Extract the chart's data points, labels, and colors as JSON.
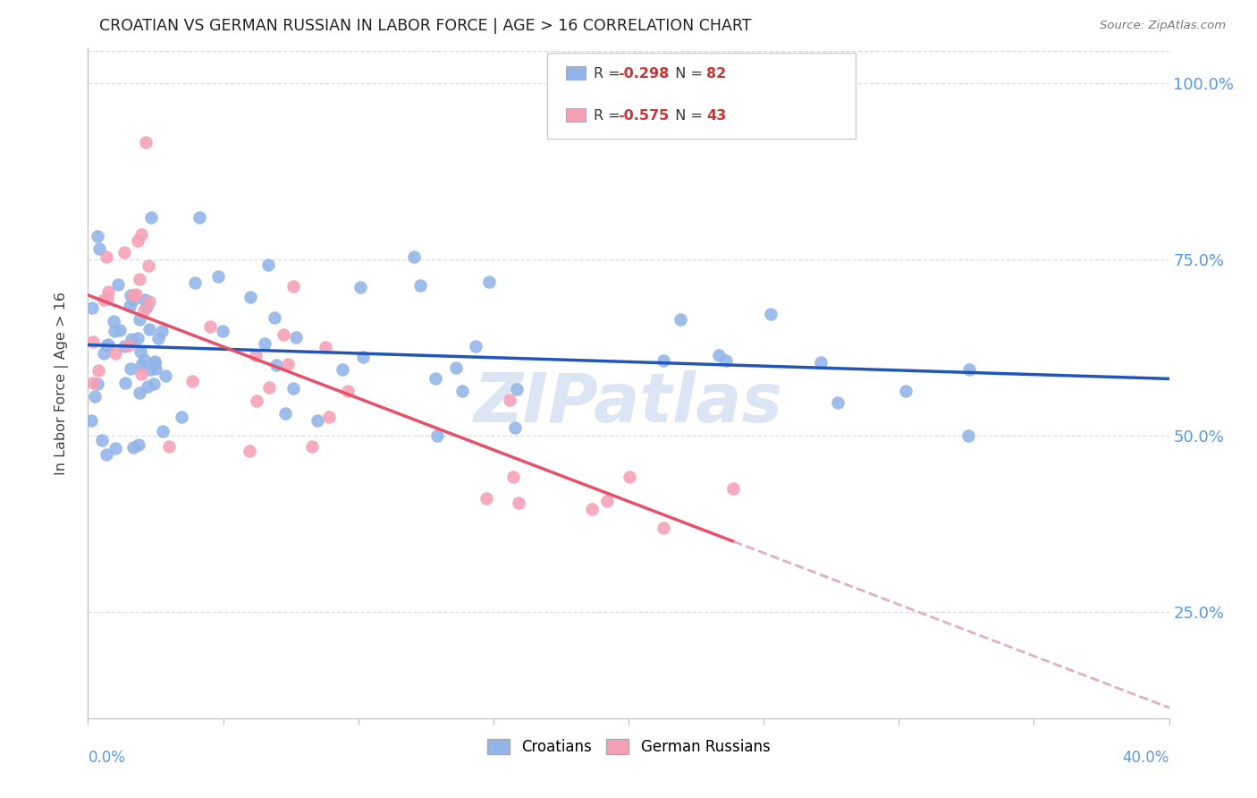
{
  "title": "CROATIAN VS GERMAN RUSSIAN IN LABOR FORCE | AGE > 16 CORRELATION CHART",
  "source": "Source: ZipAtlas.com",
  "ylabel": "In Labor Force | Age > 16",
  "y_ticks_pct": [
    25.0,
    50.0,
    75.0,
    100.0
  ],
  "x_min": 0.0,
  "x_max": 0.4,
  "y_min": 0.1,
  "y_max": 1.05,
  "croatians_color": "#92b4e8",
  "german_russians_color": "#f5a0b5",
  "trend_blue": "#2255bb",
  "trend_pink": "#e8506a",
  "trend_dashed": "#e0b0be",
  "R_croatians": -0.298,
  "N_croatians": 82,
  "R_german_russians": -0.575,
  "N_german_russians": 43,
  "watermark": "ZIPatlas",
  "watermark_color": "#c5d5ee",
  "bg_color": "#ffffff",
  "grid_color": "#dddddd",
  "axis_label_color": "#5599ee",
  "title_color": "#222222",
  "legend_text_color": "#333333",
  "legend_number_color": "#cc3333"
}
